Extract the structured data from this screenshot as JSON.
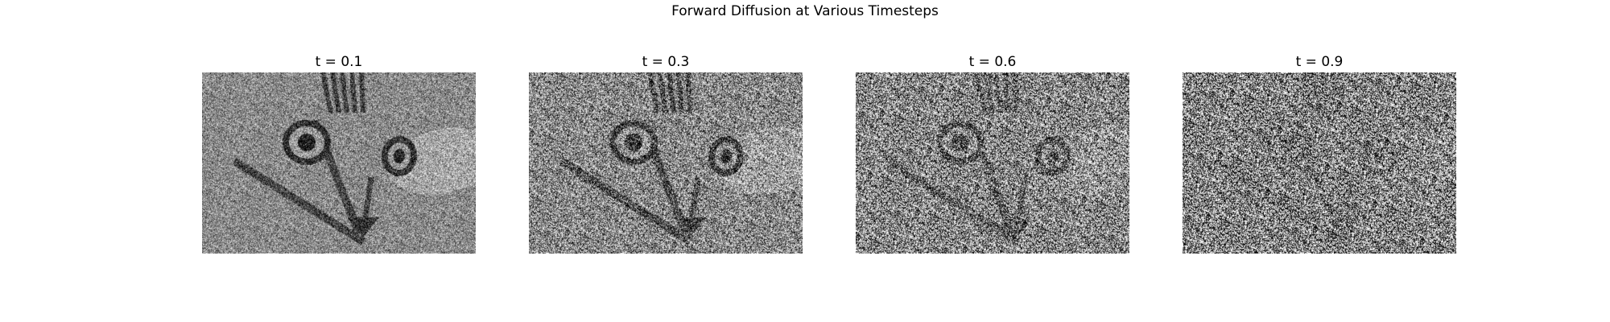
{
  "figure": {
    "title": "Forward Diffusion at Various Timesteps"
  },
  "panels": [
    {
      "title": "t = 0.1",
      "t": 0.1
    },
    {
      "title": "t = 0.3",
      "t": 0.3
    },
    {
      "title": "t = 0.6",
      "t": 0.6
    },
    {
      "title": "t = 0.9",
      "t": 0.9
    }
  ],
  "colormap": "gray"
}
